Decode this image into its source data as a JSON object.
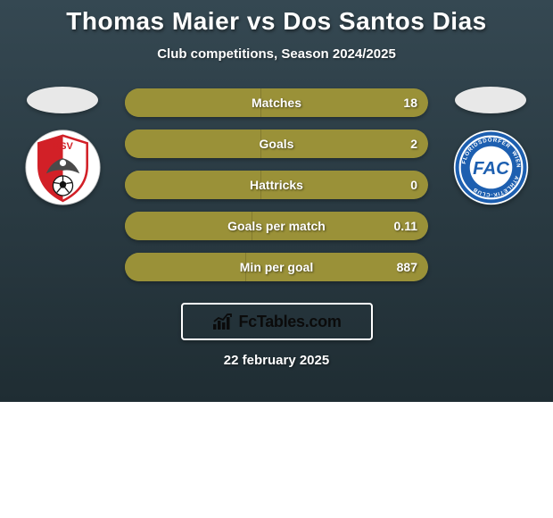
{
  "title": "Thomas Maier vs Dos Santos Dias",
  "subtitle": "Club competitions, Season 2024/2025",
  "date": "22 february 2025",
  "footer_brand": "FcTables.com",
  "colors": {
    "pill_left": "#9a9138",
    "pill_right": "#9a9138",
    "pill_bg": "#4f5d4f"
  },
  "player_left": {
    "club_name": "KSV",
    "crest": {
      "bg": "#ffffff",
      "primary": "#d22027",
      "text": "KSV"
    }
  },
  "player_right": {
    "club_name": "FAC",
    "crest": {
      "bg": "#1d5fb0",
      "ring": "#ffffff",
      "text": "FAC"
    }
  },
  "stats": [
    {
      "label": "Matches",
      "left_val": "",
      "right_val": "18",
      "left_pct": 45,
      "right_pct": 100
    },
    {
      "label": "Goals",
      "left_val": "",
      "right_val": "2",
      "left_pct": 45,
      "right_pct": 100
    },
    {
      "label": "Hattricks",
      "left_val": "",
      "right_val": "0",
      "left_pct": 45,
      "right_pct": 100
    },
    {
      "label": "Goals per match",
      "left_val": "",
      "right_val": "0.11",
      "left_pct": 42,
      "right_pct": 100
    },
    {
      "label": "Min per goal",
      "left_val": "",
      "right_val": "887",
      "left_pct": 40,
      "right_pct": 100
    }
  ]
}
